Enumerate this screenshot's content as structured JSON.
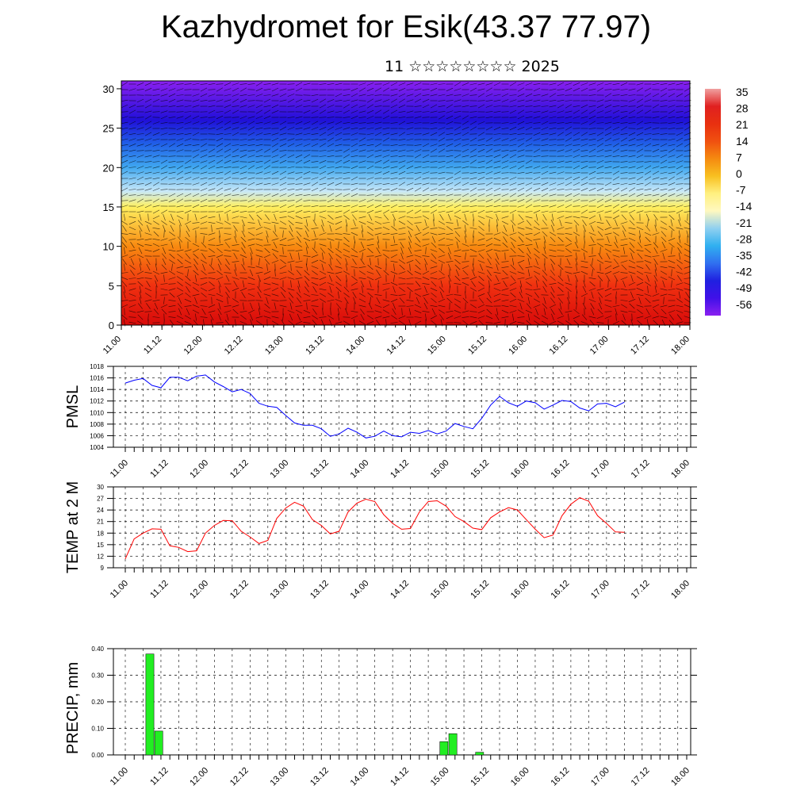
{
  "title": "Kazhydromet for Esik(43.37 77.97)",
  "subtitle": "11 ☆☆☆☆☆☆☆☆ 2025",
  "chart_data": [
    {
      "type": "heatmap",
      "description_panel": "vertical cross-section with wind barbs",
      "x_tick_labels": [
        "11.00",
        "11.12",
        "12.00",
        "12.12",
        "13.00",
        "13.12",
        "14.00",
        "14.12",
        "15.00",
        "15.12",
        "16.00",
        "16.12",
        "17.00",
        "17.12",
        "18.00"
      ],
      "y_ticks": [
        0,
        5,
        10,
        15,
        20,
        25,
        30
      ],
      "ylim": [
        0,
        31
      ],
      "colorbar_labels": [
        "35",
        "28",
        "21",
        "14",
        "7",
        "0",
        "-7",
        "-14",
        "-21",
        "-28",
        "-35",
        "-42",
        "-49",
        "-56"
      ],
      "colorbar_colors": [
        "#f0a0a0",
        "#e02020",
        "#e83010",
        "#f05010",
        "#f58a10",
        "#f8c020",
        "#fff080",
        "#fff8c0",
        "#90d0f0",
        "#30b0f0",
        "#3070f0",
        "#2020e0",
        "#4010e8",
        "#8a20f0"
      ],
      "level_colors_by_height": [
        {
          "height": 0,
          "color": "#d80a0a"
        },
        {
          "height": 5,
          "color": "#f03010"
        },
        {
          "height": 10,
          "color": "#f88a10"
        },
        {
          "height": 15,
          "color": "#fff060"
        },
        {
          "height": 17,
          "color": "#c8e8f8"
        },
        {
          "height": 20,
          "color": "#40a8f0"
        },
        {
          "height": 23,
          "color": "#2060e8"
        },
        {
          "height": 26,
          "color": "#2010d8"
        },
        {
          "height": 31,
          "color": "#8a20f0"
        }
      ]
    },
    {
      "type": "line",
      "ylabel": "PMSL",
      "x_tick_labels": [
        "11.00",
        "11.12",
        "12.00",
        "12.12",
        "13.00",
        "13.12",
        "14.00",
        "14.12",
        "15.00",
        "15.12",
        "16.00",
        "16.12",
        "17.00",
        "17.12",
        "18.00"
      ],
      "y_ticks": [
        1004,
        1006,
        1008,
        1010,
        1012,
        1014,
        1016,
        1018
      ],
      "ylim": [
        1004,
        1018
      ],
      "color": "#0000ff",
      "series": [
        {
          "values": [
            1015.1,
            1015.6,
            1015.9,
            1014.7,
            1014.3,
            1016.1,
            1016.1,
            1015.5,
            1016.3,
            1016.5,
            1015.3,
            1014.5,
            1013.6,
            1014.0,
            1013.3,
            1011.6,
            1011.1,
            1010.9,
            1009.5,
            1008.2,
            1007.8,
            1007.8,
            1007.2,
            1005.9,
            1006.3,
            1007.3,
            1006.6,
            1005.6,
            1005.9,
            1006.8,
            1006.0,
            1005.8,
            1006.6,
            1006.4,
            1006.9,
            1006.3,
            1006.8,
            1008.1,
            1007.6,
            1007.2,
            1009.0,
            1011.3,
            1012.8,
            1011.7,
            1011.1,
            1012.0,
            1011.7,
            1010.6,
            1011.3,
            1012.1,
            1011.9,
            1010.8,
            1010.3,
            1011.5,
            1011.6,
            1011.0,
            1011.8
          ]
        }
      ]
    },
    {
      "type": "line",
      "ylabel": "TEMP at 2 M",
      "x_tick_labels": [
        "11.00",
        "11.12",
        "12.00",
        "12.12",
        "13.00",
        "13.12",
        "14.00",
        "14.12",
        "15.00",
        "15.12",
        "16.00",
        "16.12",
        "17.00",
        "17.12",
        "18.00"
      ],
      "y_ticks": [
        9,
        12,
        15,
        18,
        21,
        24,
        27,
        30
      ],
      "ylim": [
        9,
        30
      ],
      "color": "#ff0000",
      "series": [
        {
          "values": [
            11.3,
            16.5,
            18.0,
            19.1,
            19.0,
            14.7,
            14.3,
            13.2,
            13.4,
            18.0,
            20.0,
            21.3,
            21.2,
            18.5,
            17.0,
            15.3,
            16.1,
            21.8,
            24.5,
            26.0,
            25.0,
            21.5,
            20.0,
            17.8,
            18.5,
            23.5,
            25.8,
            26.8,
            26.2,
            22.8,
            20.5,
            19.0,
            19.2,
            23.5,
            26.2,
            26.4,
            25.0,
            22.3,
            21.0,
            19.3,
            18.9,
            22.0,
            23.5,
            24.6,
            24.0,
            21.5,
            19.0,
            16.8,
            17.5,
            22.5,
            25.5,
            27.2,
            26.3,
            22.5,
            20.5,
            18.3,
            18.2
          ]
        }
      ]
    },
    {
      "type": "bar",
      "ylabel": "PRECIP, mm",
      "x_tick_labels": [
        "11.00",
        "11.12",
        "12.00",
        "12.12",
        "13.00",
        "13.12",
        "14.00",
        "14.12",
        "15.00",
        "15.12",
        "16.00",
        "16.12",
        "17.00",
        "17.12",
        "18.00"
      ],
      "y_ticks": [
        "0.00",
        "0.10",
        "0.20",
        "0.30",
        "0.40"
      ],
      "ylim": [
        0,
        0.4
      ],
      "color": "#22ee22",
      "bars": [
        {
          "step": 2,
          "value": 0.38
        },
        {
          "step": 3,
          "value": 0.09
        },
        {
          "step": 35,
          "value": 0.05
        },
        {
          "step": 36,
          "value": 0.08
        },
        {
          "step": 39,
          "value": 0.01
        }
      ]
    }
  ]
}
